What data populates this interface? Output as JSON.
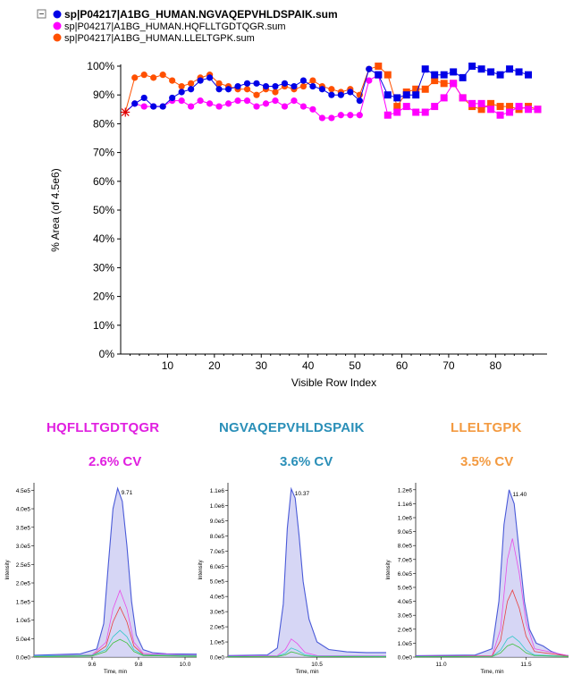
{
  "colors": {
    "blue": "#0000e6",
    "magenta": "#ff00ff",
    "orange": "#ff5000",
    "peptide_magenta": "#e020e0",
    "peptide_teal": "#2a8fb8",
    "peptide_orange": "#f39a40",
    "trace_blue": "#4a5ad8",
    "fill_blue": "#c8c8f2"
  },
  "chart_data": [
    {
      "type": "line",
      "ylabel": "% Area (of 4.5e6)",
      "xlabel": "Visible Row Index",
      "xlim": [
        0,
        91
      ],
      "ylim": [
        0,
        100
      ],
      "x_ticks": [
        10,
        20,
        30,
        40,
        50,
        60,
        70,
        80
      ],
      "x_tick_labels": [
        "10",
        "20",
        "30",
        "40",
        "50",
        "60",
        "70",
        "80"
      ],
      "y_ticks": [
        0,
        10,
        20,
        30,
        40,
        50,
        60,
        70,
        80,
        90,
        100
      ],
      "y_tick_labels": [
        "0%",
        "10%",
        "20%",
        "30%",
        "40%",
        "50%",
        "60%",
        "70%",
        "80%",
        "90%",
        "100%"
      ],
      "legend_position": "top-left",
      "legend_toggle": "−",
      "series": [
        {
          "name": "sp|P04217|A1BG_HUMAN.NGVAQEPVHLDSPAIK.sum",
          "color": "#0000e6",
          "marker": "circle-then-square",
          "bold": true,
          "x": [
            1,
            3,
            5,
            7,
            9,
            11,
            13,
            15,
            17,
            19,
            21,
            23,
            25,
            27,
            29,
            31,
            33,
            35,
            37,
            39,
            41,
            43,
            45,
            47,
            49,
            51,
            53,
            55,
            57,
            59,
            61,
            63,
            65,
            67,
            69,
            71,
            73,
            75,
            77,
            79,
            81,
            83,
            85,
            87
          ],
          "y": [
            84,
            87,
            89,
            86,
            86,
            89,
            91,
            92,
            95,
            96,
            92,
            92,
            93,
            94,
            94,
            93,
            93,
            94,
            93,
            95,
            93,
            92,
            90,
            90,
            91,
            88,
            99,
            97,
            90,
            89,
            90,
            90,
            99,
            97,
            97,
            98,
            96,
            100,
            99,
            98,
            97,
            99,
            98,
            97
          ]
        },
        {
          "name": "sp|P04217|A1BG_HUMAN.HQFLLTGDTQGR.sum",
          "color": "#ff00ff",
          "marker": "circle-then-square",
          "bold": false,
          "x": [
            1,
            3,
            5,
            7,
            9,
            11,
            13,
            15,
            17,
            19,
            21,
            23,
            25,
            27,
            29,
            31,
            33,
            35,
            37,
            39,
            41,
            43,
            45,
            47,
            49,
            51,
            53,
            55,
            57,
            59,
            61,
            63,
            65,
            67,
            69,
            71,
            73,
            75,
            77,
            79,
            81,
            83,
            85,
            87,
            89
          ],
          "y": [
            84,
            87,
            86,
            86,
            86,
            88,
            88,
            86,
            88,
            87,
            86,
            87,
            88,
            88,
            86,
            87,
            88,
            86,
            88,
            86,
            85,
            82,
            82,
            83,
            83,
            83,
            95,
            97,
            83,
            84,
            86,
            84,
            84,
            86,
            89,
            94,
            89,
            87,
            87,
            85,
            83,
            84,
            86,
            85,
            85
          ]
        },
        {
          "name": "sp|P04217|A1BG_HUMAN.LLELTGPK.sum",
          "color": "#ff5000",
          "marker": "circle-then-square",
          "bold": false,
          "x": [
            1,
            3,
            5,
            7,
            9,
            11,
            13,
            15,
            17,
            19,
            21,
            23,
            25,
            27,
            29,
            31,
            33,
            35,
            37,
            39,
            41,
            43,
            45,
            47,
            49,
            51,
            53,
            55,
            57,
            59,
            61,
            63,
            65,
            67,
            69,
            71,
            73,
            75,
            77,
            79,
            81,
            83,
            85,
            87,
            89
          ],
          "y": [
            84,
            96,
            97,
            96,
            97,
            95,
            93,
            94,
            96,
            97,
            94,
            93,
            92,
            92,
            90,
            92,
            91,
            93,
            92,
            93,
            95,
            93,
            92,
            91,
            92,
            90,
            99,
            100,
            97,
            86,
            91,
            92,
            92,
            95,
            94,
            94,
            89,
            86,
            85,
            87,
            86,
            86,
            85,
            86,
            85
          ]
        }
      ]
    },
    {
      "type": "area",
      "title": "HQFLLTGDTQGR",
      "subtitle": "2.6% CV",
      "title_color": "#e020e0",
      "ylabel": "Intensity",
      "xlabel": "Time, min",
      "peak_label": "9.71",
      "peak_x": 9.71,
      "xlim": [
        9.35,
        10.05
      ],
      "ylim": [
        0,
        470000
      ],
      "x_ticks": [
        9.6,
        9.8,
        10.0
      ],
      "x_tick_labels": [
        "9.6",
        "9.8",
        "10.0"
      ],
      "y_ticks": [
        0,
        50000,
        100000,
        150000,
        200000,
        250000,
        300000,
        350000,
        400000,
        450000
      ],
      "y_tick_labels": [
        "0.0e0",
        "5.0e4",
        "1.0e5",
        "1.5e5",
        "2.0e5",
        "2.5e5",
        "3.0e5",
        "3.5e5",
        "4.0e5",
        "4.5e5"
      ],
      "series": [
        {
          "name": "",
          "color": "#4a5ad8",
          "x": [
            9.35,
            9.55,
            9.62,
            9.65,
            9.67,
            9.69,
            9.71,
            9.73,
            9.75,
            9.77,
            9.79,
            9.82,
            9.86,
            9.92,
            10.05
          ],
          "values": [
            5000,
            9000,
            22000,
            90000,
            250000,
            400000,
            455000,
            420000,
            300000,
            150000,
            60000,
            20000,
            12000,
            9000,
            8000
          ]
        },
        {
          "name": "",
          "color": "#e84ee8",
          "x": [
            9.35,
            9.6,
            9.66,
            9.69,
            9.72,
            9.75,
            9.78,
            9.82,
            10.05
          ],
          "values": [
            3000,
            6000,
            40000,
            130000,
            180000,
            130000,
            40000,
            10000,
            5000
          ]
        },
        {
          "name": "",
          "color": "#e84040",
          "x": [
            9.35,
            9.6,
            9.66,
            9.69,
            9.72,
            9.75,
            9.78,
            9.82,
            10.05
          ],
          "values": [
            2000,
            4000,
            30000,
            95000,
            135000,
            95000,
            30000,
            7000,
            3000
          ]
        },
        {
          "name": "",
          "color": "#30c8c8",
          "x": [
            9.35,
            9.6,
            9.66,
            9.69,
            9.72,
            9.75,
            9.78,
            9.82,
            10.05
          ],
          "values": [
            3000,
            5000,
            20000,
            55000,
            72000,
            55000,
            20000,
            6000,
            4000
          ]
        },
        {
          "name": "",
          "color": "#40c040",
          "x": [
            9.35,
            9.6,
            9.66,
            9.69,
            9.72,
            9.75,
            9.78,
            9.82,
            10.05
          ],
          "values": [
            1000,
            3000,
            15000,
            38000,
            48000,
            38000,
            15000,
            4000,
            2000
          ]
        }
      ]
    },
    {
      "type": "area",
      "title": "NGVAQEPVHLDSPAIK",
      "subtitle": "3.6% CV",
      "title_color": "#2a8fb8",
      "ylabel": "Intensity",
      "xlabel": "Time, min",
      "peak_label": "10.37",
      "peak_x": 10.37,
      "xlim": [
        10.05,
        10.85
      ],
      "ylim": [
        0,
        1150000
      ],
      "x_ticks": [
        10.5
      ],
      "x_tick_labels": [
        "10.5"
      ],
      "y_ticks": [
        0,
        100000,
        200000,
        300000,
        400000,
        500000,
        600000,
        700000,
        800000,
        900000,
        1000000,
        1100000
      ],
      "y_tick_labels": [
        "0.0e0",
        "1.0e5",
        "2.0e5",
        "3.0e5",
        "4.0e5",
        "5.0e5",
        "6.0e5",
        "7.0e5",
        "8.0e5",
        "9.0e5",
        "1.0e6",
        "1.1e6"
      ],
      "series": [
        {
          "name": "",
          "color": "#4a5ad8",
          "x": [
            10.05,
            10.25,
            10.3,
            10.33,
            10.35,
            10.37,
            10.39,
            10.41,
            10.43,
            10.46,
            10.5,
            10.56,
            10.65,
            10.75,
            10.85
          ],
          "values": [
            10000,
            15000,
            60000,
            350000,
            850000,
            1110000,
            1050000,
            800000,
            500000,
            250000,
            100000,
            50000,
            35000,
            30000,
            30000
          ]
        },
        {
          "name": "",
          "color": "#e84ee8",
          "x": [
            10.05,
            10.3,
            10.34,
            10.37,
            10.4,
            10.44,
            10.5,
            10.85
          ],
          "values": [
            5000,
            10000,
            50000,
            120000,
            90000,
            30000,
            10000,
            8000
          ]
        },
        {
          "name": "",
          "color": "#30c8c8",
          "x": [
            10.05,
            10.3,
            10.34,
            10.37,
            10.4,
            10.44,
            10.5,
            10.85
          ],
          "values": [
            3000,
            6000,
            25000,
            60000,
            45000,
            15000,
            6000,
            5000
          ]
        },
        {
          "name": "",
          "color": "#40c040",
          "x": [
            10.05,
            10.3,
            10.34,
            10.37,
            10.4,
            10.44,
            10.5,
            10.85
          ],
          "values": [
            2000,
            4000,
            15000,
            35000,
            25000,
            8000,
            3000,
            2000
          ]
        }
      ]
    },
    {
      "type": "area",
      "title": "LLELTGPK",
      "subtitle": "3.5% CV",
      "title_color": "#f39a40",
      "ylabel": "Intensity",
      "xlabel": "Time, min",
      "peak_label": "11.40",
      "peak_x": 11.4,
      "xlim": [
        10.85,
        11.75
      ],
      "ylim": [
        0,
        1250000
      ],
      "x_ticks": [
        11.0,
        11.5
      ],
      "x_tick_labels": [
        "11.0",
        "11.5"
      ],
      "y_ticks": [
        0,
        100000,
        200000,
        300000,
        400000,
        500000,
        600000,
        700000,
        800000,
        900000,
        1000000,
        1100000,
        1200000
      ],
      "y_tick_labels": [
        "0.0e0",
        "1.0e5",
        "2.0e5",
        "3.0e5",
        "4.0e5",
        "5.0e5",
        "6.0e5",
        "7.0e5",
        "8.0e5",
        "9.0e5",
        "1.0e6",
        "1.1e6",
        "1.2e6"
      ],
      "series": [
        {
          "name": "",
          "color": "#4a5ad8",
          "x": [
            10.85,
            11.2,
            11.3,
            11.34,
            11.37,
            11.4,
            11.43,
            11.46,
            11.49,
            11.52,
            11.56,
            11.6,
            11.65,
            11.7,
            11.75
          ],
          "values": [
            10000,
            15000,
            60000,
            400000,
            950000,
            1200000,
            1100000,
            750000,
            400000,
            200000,
            100000,
            80000,
            40000,
            20000,
            10000
          ]
        },
        {
          "name": "",
          "color": "#e84ee8",
          "x": [
            10.85,
            11.3,
            11.35,
            11.39,
            11.42,
            11.46,
            11.5,
            11.55,
            11.75
          ],
          "values": [
            5000,
            10000,
            200000,
            700000,
            850000,
            600000,
            250000,
            60000,
            10000
          ]
        },
        {
          "name": "",
          "color": "#e84040",
          "x": [
            10.85,
            11.3,
            11.35,
            11.39,
            11.42,
            11.46,
            11.5,
            11.55,
            11.75
          ],
          "values": [
            4000,
            8000,
            120000,
            400000,
            480000,
            350000,
            150000,
            40000,
            8000
          ]
        },
        {
          "name": "",
          "color": "#30c8c8",
          "x": [
            10.85,
            11.3,
            11.35,
            11.39,
            11.42,
            11.46,
            11.5,
            11.55,
            11.75
          ],
          "values": [
            3000,
            6000,
            50000,
            130000,
            150000,
            110000,
            50000,
            15000,
            5000
          ]
        },
        {
          "name": "",
          "color": "#40c040",
          "x": [
            10.85,
            11.3,
            11.35,
            11.39,
            11.42,
            11.46,
            11.5,
            11.55,
            11.75
          ],
          "values": [
            2000,
            4000,
            30000,
            80000,
            95000,
            70000,
            30000,
            10000,
            3000
          ]
        }
      ]
    }
  ]
}
